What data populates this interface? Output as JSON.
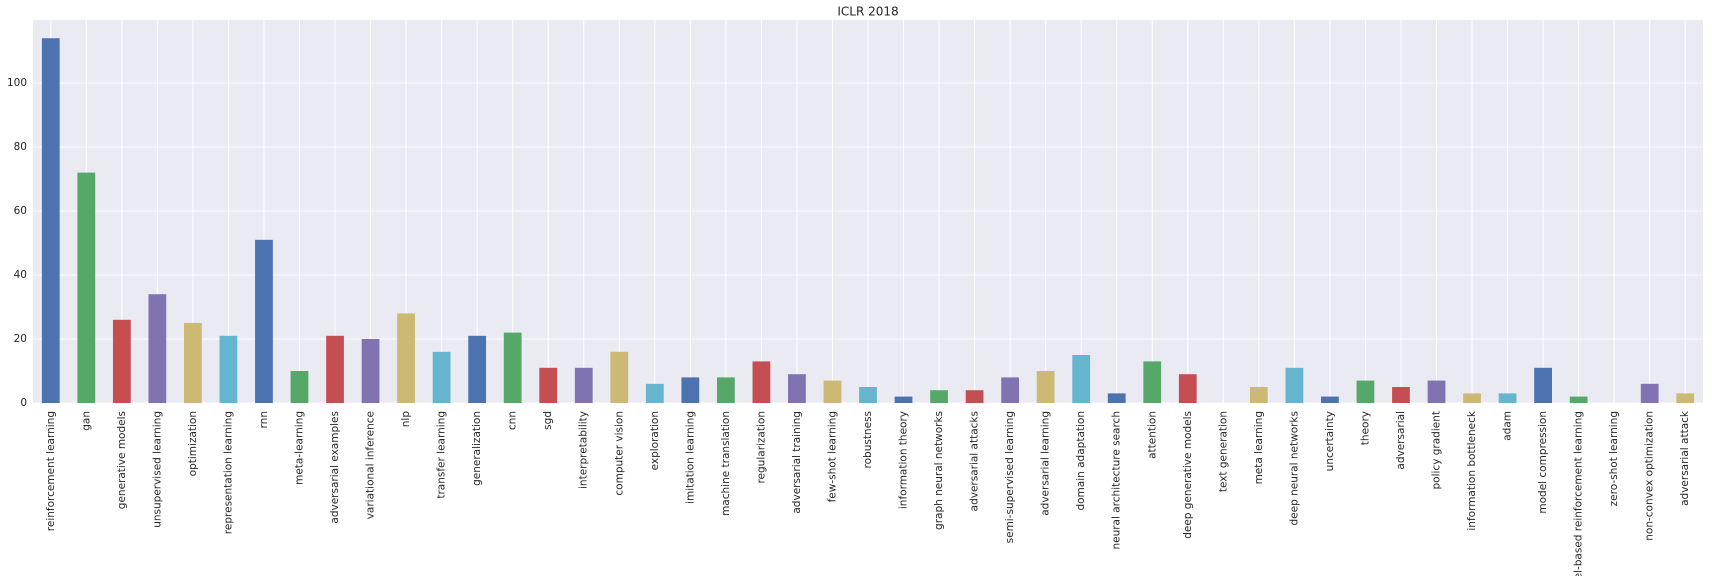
{
  "chart_data": {
    "type": "bar",
    "title": "ICLR 2018",
    "categories": [
      "reinforcement learning",
      "gan",
      "generative models",
      "unsupervised learning",
      "optimization",
      "representation learning",
      "rnn",
      "meta-learning",
      "adversarial examples",
      "variational inference",
      "nlp",
      "transfer learning",
      "generalization",
      "cnn",
      "sgd",
      "interpretability",
      "computer vision",
      "exploration",
      "imitation learning",
      "machine translation",
      "regularization",
      "adversarial training",
      "few-shot learning",
      "robustness",
      "information theory",
      "graph neural networks",
      "adversarial attacks",
      "semi-supervised learning",
      "adversarial learning",
      "domain adaptation",
      "neural architecture search",
      "attention",
      "deep generative models",
      "text generation",
      "meta learning",
      "deep neural networks",
      "uncertainty",
      "theory",
      "adversarial",
      "policy gradient",
      "information bottleneck",
      "adam",
      "model compression",
      "model-based reinforcement learning",
      "zero-shot learning",
      "non-convex optimization",
      "adversarial attack"
    ],
    "values": [
      114,
      72,
      26,
      34,
      25,
      21,
      51,
      10,
      21,
      20,
      28,
      16,
      21,
      22,
      11,
      11,
      16,
      6,
      8,
      8,
      13,
      9,
      7,
      5,
      2,
      4,
      4,
      8,
      10,
      15,
      3,
      13,
      9,
      0,
      5,
      11,
      2,
      7,
      5,
      7,
      3,
      3,
      11,
      2,
      0,
      6,
      3
    ],
    "colors": [
      "#4c72b0",
      "#55a868",
      "#c44e52",
      "#8172b2",
      "#ccb974",
      "#64b5cd"
    ],
    "ylim": [
      0,
      119.7
    ],
    "yticks": [
      0,
      20,
      40,
      60,
      80,
      100
    ],
    "grid": true
  }
}
